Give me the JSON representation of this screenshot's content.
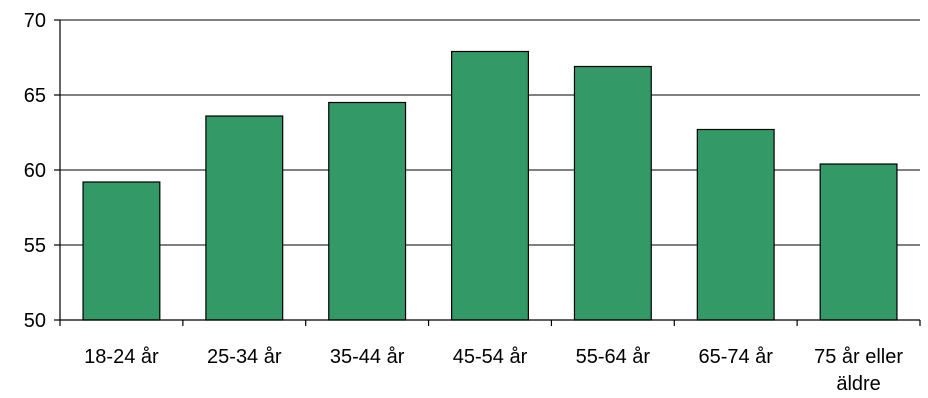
{
  "chart_data": {
    "type": "bar",
    "title": "",
    "xlabel": "",
    "ylabel": "",
    "categories": [
      "18-24 år",
      "25-34 år",
      "35-44 år",
      "45-54 år",
      "55-64 år",
      "65-74 år",
      "75 år eller äldre"
    ],
    "category_lines": [
      [
        "18-24 år"
      ],
      [
        "25-34 år"
      ],
      [
        "35-44 år"
      ],
      [
        "45-54 år"
      ],
      [
        "55-64 år"
      ],
      [
        "65-74 år"
      ],
      [
        "75 år eller",
        "äldre"
      ]
    ],
    "values": [
      59.2,
      63.6,
      64.5,
      67.9,
      66.9,
      62.7,
      60.4
    ],
    "ylim": [
      50,
      70
    ],
    "yticks": [
      50,
      55,
      60,
      65,
      70
    ],
    "grid": true,
    "bar_color": "#339966",
    "grid_color": "#000000"
  }
}
